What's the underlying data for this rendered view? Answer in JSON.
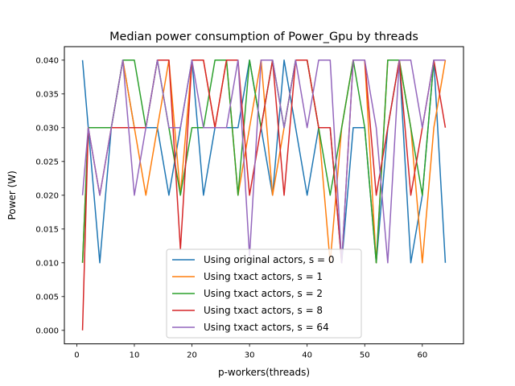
{
  "chart_data": {
    "type": "line",
    "title": "Median power consumption of Power_Gpu by threads",
    "xlabel": "p-workers(threads)",
    "ylabel": "Power (W)",
    "xlim": [
      -2.15,
      67.15
    ],
    "ylim": [
      -0.002,
      0.042
    ],
    "xticks": [
      0,
      10,
      20,
      30,
      40,
      50,
      60
    ],
    "xtick_labels": [
      "0",
      "10",
      "20",
      "30",
      "40",
      "50",
      "60"
    ],
    "yticks": [
      0.0,
      0.005,
      0.01,
      0.015,
      0.02,
      0.025,
      0.03,
      0.035,
      0.04
    ],
    "ytick_labels": [
      "0.000",
      "0.005",
      "0.010",
      "0.015",
      "0.020",
      "0.025",
      "0.030",
      "0.035",
      "0.040"
    ],
    "grid": false,
    "legend_position": "lower center",
    "x": [
      1,
      2,
      4,
      6,
      8,
      10,
      12,
      14,
      16,
      18,
      20,
      22,
      24,
      26,
      28,
      30,
      32,
      34,
      36,
      38,
      40,
      42,
      44,
      46,
      48,
      50,
      52,
      54,
      56,
      58,
      60,
      62,
      64
    ],
    "series": [
      {
        "name": "Using original actors, s = 0",
        "color": "#1f77b4",
        "values": [
          0.04,
          0.03,
          0.01,
          0.03,
          0.04,
          0.03,
          0.03,
          0.03,
          0.02,
          0.03,
          0.04,
          0.02,
          0.03,
          0.03,
          0.03,
          0.04,
          0.03,
          0.02,
          0.04,
          0.03,
          0.02,
          0.03,
          0.03,
          0.01,
          0.03,
          0.03,
          0.01,
          0.03,
          0.04,
          0.01,
          0.02,
          0.04,
          0.01
        ]
      },
      {
        "name": "Using txact actors, s = 1",
        "color": "#ff7f0e",
        "values": [
          0.01,
          0.03,
          0.03,
          0.03,
          0.04,
          0.03,
          0.02,
          0.03,
          0.04,
          0.02,
          0.04,
          0.04,
          0.03,
          0.04,
          0.02,
          0.03,
          0.04,
          0.02,
          0.03,
          0.04,
          0.04,
          0.03,
          0.01,
          0.03,
          0.04,
          0.04,
          0.01,
          0.04,
          0.04,
          0.03,
          0.01,
          0.03,
          0.04
        ]
      },
      {
        "name": "Using txact actors, s = 2",
        "color": "#2ca02c",
        "values": [
          0.01,
          0.03,
          0.03,
          0.03,
          0.04,
          0.04,
          0.03,
          0.04,
          0.03,
          0.02,
          0.03,
          0.03,
          0.04,
          0.04,
          0.02,
          0.04,
          0.03,
          0.04,
          0.03,
          0.04,
          0.04,
          0.03,
          0.02,
          0.03,
          0.04,
          0.03,
          0.01,
          0.04,
          0.04,
          0.03,
          0.02,
          0.04,
          0.04
        ]
      },
      {
        "name": "Using txact actors, s = 8",
        "color": "#d62728",
        "values": [
          0.0,
          0.03,
          0.02,
          0.03,
          0.03,
          0.03,
          0.03,
          0.04,
          0.04,
          0.012,
          0.04,
          0.04,
          0.03,
          0.04,
          0.04,
          0.02,
          0.03,
          0.04,
          0.02,
          0.04,
          0.04,
          0.03,
          0.03,
          0.01,
          0.04,
          0.04,
          0.02,
          0.03,
          0.04,
          0.02,
          0.03,
          0.04,
          0.03
        ]
      },
      {
        "name": "Using txact actors, s = 64",
        "color": "#9467bd",
        "values": [
          0.02,
          0.03,
          0.02,
          0.03,
          0.04,
          0.02,
          0.03,
          0.04,
          0.03,
          0.03,
          0.04,
          0.03,
          0.03,
          0.03,
          0.04,
          0.011,
          0.04,
          0.04,
          0.03,
          0.04,
          0.03,
          0.04,
          0.04,
          0.01,
          0.04,
          0.04,
          0.03,
          0.01,
          0.04,
          0.04,
          0.03,
          0.04,
          0.04
        ]
      }
    ]
  }
}
